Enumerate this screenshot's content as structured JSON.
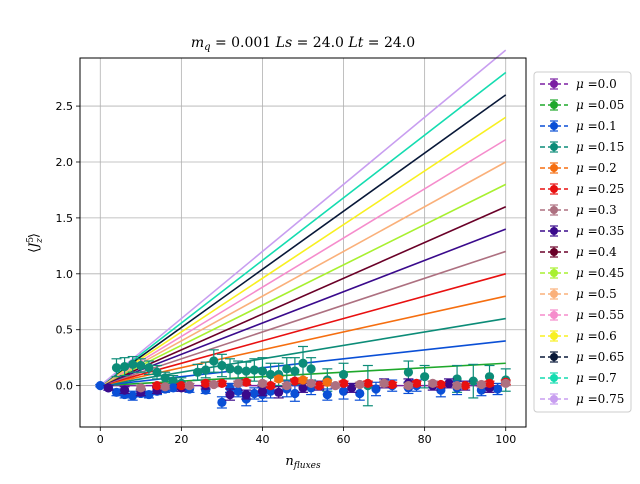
{
  "chart_data": {
    "type": "line",
    "title": "m_q = 0.001 Ls = 24.0 Lt = 24.0",
    "title_parts": {
      "a": "m",
      "a_sub": "q",
      "b": " = 0.001 ",
      "c": "Ls",
      "d": " = 24.0 ",
      "e": "Lt",
      "f": " = 24.0"
    },
    "xlabel": "n_fluxes",
    "xlabel_parts": {
      "base": "n",
      "sub": "fluxes"
    },
    "ylabel": "⟨J_z^5⟩",
    "ylabel_parts": {
      "open": "⟨",
      "base": "J",
      "sup": "5",
      "sub": "z",
      "close": "⟩"
    },
    "xlim": [
      -5,
      105
    ],
    "ylim": [
      -0.37,
      2.93
    ],
    "xticks": [
      0,
      20,
      40,
      60,
      80,
      100
    ],
    "yticks": [
      0.0,
      0.5,
      1.0,
      1.5,
      2.0,
      2.5
    ],
    "xtick_labels": [
      "0",
      "20",
      "40",
      "60",
      "80",
      "100"
    ],
    "ytick_labels": [
      "0.0",
      "0.5",
      "1.0",
      "1.5",
      "2.0",
      "2.5"
    ],
    "grid": true,
    "legend_position": "right, outside plot",
    "legend_prefix": "μ =",
    "series": [
      {
        "name": "0.0",
        "color": "#7b1fa2",
        "slope": 0.0
      },
      {
        "name": "0.05",
        "color": "#1fa82b",
        "slope": 0.002
      },
      {
        "name": "0.1",
        "color": "#0a4fd6",
        "slope": 0.004
      },
      {
        "name": "0.15",
        "color": "#0c8c78",
        "slope": 0.006
      },
      {
        "name": "0.2",
        "color": "#f56e10",
        "slope": 0.008
      },
      {
        "name": "0.25",
        "color": "#e81010",
        "slope": 0.01
      },
      {
        "name": "0.3",
        "color": "#ad7080",
        "slope": 0.012
      },
      {
        "name": "0.35",
        "color": "#3a0a8c",
        "slope": 0.014
      },
      {
        "name": "0.4",
        "color": "#6a0028",
        "slope": 0.016
      },
      {
        "name": "0.45",
        "color": "#a8f030",
        "slope": 0.018
      },
      {
        "name": "0.5",
        "color": "#fab07a",
        "slope": 0.02
      },
      {
        "name": "0.55",
        "color": "#f58ccc",
        "slope": 0.022
      },
      {
        "name": "0.6",
        "color": "#f8f020",
        "slope": 0.024
      },
      {
        "name": "0.65",
        "color": "#081838",
        "slope": 0.026
      },
      {
        "name": "0.7",
        "color": "#14dcb0",
        "slope": 0.028
      },
      {
        "name": "0.75",
        "color": "#c89ef0",
        "slope": 0.03
      }
    ],
    "measured_points": [
      {
        "series": "0.15",
        "points": [
          [
            4,
            0.16,
            0.08
          ],
          [
            6,
            0.17,
            0.08
          ],
          [
            8,
            0.19,
            0.07
          ],
          [
            10,
            0.18,
            0.06
          ],
          [
            12,
            0.16,
            0.06
          ],
          [
            14,
            0.12,
            0.06
          ],
          [
            16,
            0.07,
            0.05
          ],
          [
            18,
            0.04,
            0.05
          ],
          [
            20,
            0.02,
            0.05
          ],
          [
            24,
            0.12,
            0.07
          ],
          [
            26,
            0.14,
            0.07
          ],
          [
            28,
            0.22,
            0.1
          ],
          [
            30,
            0.18,
            0.1
          ],
          [
            32,
            0.15,
            0.09
          ],
          [
            34,
            0.14,
            0.08
          ],
          [
            36,
            0.13,
            0.08
          ],
          [
            38,
            0.14,
            0.1
          ],
          [
            40,
            0.13,
            0.12
          ],
          [
            42,
            0.1,
            0.1
          ],
          [
            44,
            0.1,
            0.1
          ],
          [
            46,
            0.15,
            0.1
          ],
          [
            48,
            0.13,
            0.12
          ],
          [
            50,
            0.2,
            0.15
          ],
          [
            52,
            0.15,
            0.1
          ],
          [
            56,
            0.05,
            0.1
          ],
          [
            60,
            0.1,
            0.1
          ],
          [
            66,
            0.0,
            0.18
          ],
          [
            76,
            0.12,
            0.1
          ],
          [
            80,
            0.08,
            0.1
          ],
          [
            88,
            0.06,
            0.12
          ],
          [
            92,
            0.04,
            0.15
          ],
          [
            96,
            0.08,
            0.1
          ],
          [
            100,
            0.05,
            0.1
          ]
        ]
      },
      {
        "series": "0.1",
        "points": [
          [
            0,
            0.0,
            0.01
          ],
          [
            2,
            -0.02,
            0.02
          ],
          [
            4,
            -0.06,
            0.03
          ],
          [
            6,
            -0.08,
            0.03
          ],
          [
            8,
            -0.09,
            0.04
          ],
          [
            10,
            -0.07,
            0.03
          ],
          [
            12,
            -0.08,
            0.03
          ],
          [
            14,
            -0.05,
            0.03
          ],
          [
            16,
            -0.03,
            0.03
          ],
          [
            18,
            -0.02,
            0.03
          ],
          [
            22,
            -0.03,
            0.03
          ],
          [
            26,
            -0.04,
            0.03
          ],
          [
            30,
            -0.15,
            0.05
          ],
          [
            32,
            -0.02,
            0.04
          ],
          [
            34,
            -0.05,
            0.05
          ],
          [
            36,
            -0.12,
            0.06
          ],
          [
            38,
            -0.07,
            0.05
          ],
          [
            40,
            -0.08,
            0.06
          ],
          [
            42,
            -0.05,
            0.06
          ],
          [
            46,
            -0.03,
            0.07
          ],
          [
            48,
            -0.07,
            0.07
          ],
          [
            52,
            -0.02,
            0.06
          ],
          [
            56,
            -0.08,
            0.05
          ],
          [
            60,
            -0.05,
            0.07
          ],
          [
            64,
            -0.07,
            0.06
          ],
          [
            68,
            -0.03,
            0.06
          ],
          [
            72,
            0.0,
            0.05
          ],
          [
            76,
            -0.02,
            0.05
          ],
          [
            78,
            0.0,
            0.05
          ],
          [
            84,
            -0.04,
            0.06
          ],
          [
            88,
            -0.02,
            0.06
          ],
          [
            94,
            -0.04,
            0.05
          ],
          [
            98,
            -0.03,
            0.05
          ]
        ]
      },
      {
        "series": "0.35",
        "points": [
          [
            2,
            -0.02,
            0.02
          ],
          [
            6,
            -0.04,
            0.03
          ],
          [
            10,
            -0.06,
            0.03
          ],
          [
            14,
            -0.04,
            0.03
          ],
          [
            20,
            -0.02,
            0.03
          ],
          [
            26,
            0.0,
            0.03
          ],
          [
            32,
            -0.08,
            0.05
          ],
          [
            36,
            -0.08,
            0.04
          ],
          [
            40,
            -0.05,
            0.04
          ],
          [
            44,
            -0.06,
            0.05
          ],
          [
            50,
            -0.02,
            0.04
          ],
          [
            54,
            0.0,
            0.04
          ],
          [
            62,
            -0.02,
            0.04
          ],
          [
            70,
            0.02,
            0.04
          ],
          [
            76,
            0.02,
            0.04
          ],
          [
            82,
            0.0,
            0.04
          ],
          [
            86,
            0.02,
            0.04
          ],
          [
            90,
            0.0,
            0.04
          ],
          [
            96,
            -0.02,
            0.04
          ]
        ]
      },
      {
        "series": "0.25",
        "points": [
          [
            14,
            0.0,
            0.02
          ],
          [
            20,
            0.0,
            0.02
          ],
          [
            26,
            0.02,
            0.02
          ],
          [
            30,
            0.02,
            0.02
          ],
          [
            36,
            0.03,
            0.02
          ],
          [
            42,
            0.0,
            0.02
          ],
          [
            48,
            0.04,
            0.02
          ],
          [
            54,
            0.0,
            0.02
          ],
          [
            60,
            0.02,
            0.02
          ],
          [
            66,
            0.02,
            0.02
          ],
          [
            72,
            0.01,
            0.02
          ],
          [
            78,
            0.02,
            0.02
          ],
          [
            84,
            0.01,
            0.02
          ],
          [
            90,
            0.0,
            0.02
          ],
          [
            96,
            0.02,
            0.02
          ],
          [
            100,
            0.03,
            0.02
          ]
        ]
      },
      {
        "series": "0.2",
        "points": [
          [
            44,
            0.06,
            0.02
          ],
          [
            50,
            0.05,
            0.02
          ],
          [
            56,
            0.03,
            0.02
          ]
        ]
      },
      {
        "series": "0.3",
        "points": [
          [
            10,
            -0.02,
            0.02
          ],
          [
            16,
            -0.01,
            0.02
          ],
          [
            22,
            0.0,
            0.02
          ],
          [
            28,
            0.01,
            0.02
          ],
          [
            34,
            0.02,
            0.02
          ],
          [
            40,
            0.02,
            0.02
          ],
          [
            46,
            0.0,
            0.02
          ],
          [
            52,
            0.02,
            0.02
          ],
          [
            58,
            0.0,
            0.02
          ],
          [
            64,
            0.01,
            0.02
          ],
          [
            70,
            0.02,
            0.02
          ],
          [
            76,
            0.0,
            0.02
          ],
          [
            82,
            0.02,
            0.02
          ],
          [
            88,
            0.0,
            0.02
          ],
          [
            94,
            0.01,
            0.02
          ],
          [
            100,
            0.02,
            0.02
          ]
        ]
      }
    ]
  }
}
